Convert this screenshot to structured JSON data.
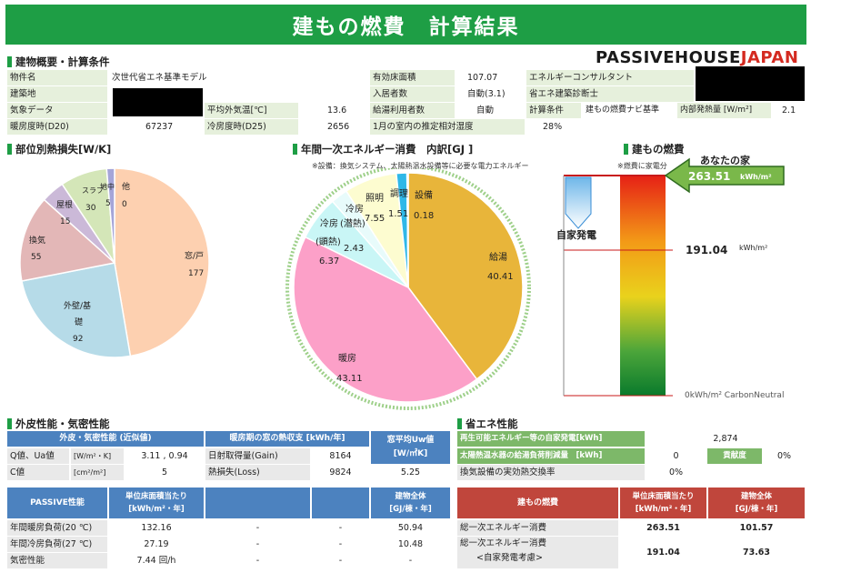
{
  "title": "建もの燃費　計算結果",
  "logo": {
    "left": "PASSIVEHOUSE",
    "right": "JAPAN"
  },
  "overview": {
    "section": "建物概要・計算条件",
    "row1": {
      "l1": "物件名",
      "v1": "次世代省エネ基準モデル",
      "l2": "有効床面積",
      "v2": "107.07",
      "l3": "エネルギーコンサルタント"
    },
    "row2": {
      "l1": "建築地",
      "l2": "入居者数",
      "v2": "自動(3.1)",
      "l3": "省エネ建築診断士"
    },
    "row3": {
      "l1": "気象データ",
      "l2": "平均外気温[℃]",
      "v2": "13.6",
      "l3": "給湯利用者数",
      "v3": "自動",
      "l4": "計算条件",
      "v4": "建もの燃費ナビ基準",
      "l5": "内部発熱量 [W/m²]",
      "v5": "2.1"
    },
    "row4": {
      "l1": "暖房度時(D20)",
      "v1": "67237",
      "l2": "冷房度時(D25)",
      "v2": "2656",
      "l3": "1月の室内の推定相対湿度",
      "v3": "28%"
    }
  },
  "heatloss": {
    "section": "部位別熱損失[W/K]",
    "slices": [
      {
        "label": "窓/戸",
        "value": "177",
        "color": "#fdd0b0"
      },
      {
        "label": "外壁/基礎",
        "value": "92",
        "color": "#b6dbe8"
      },
      {
        "label": "換気",
        "value": "55",
        "color": "#e3b7b7"
      },
      {
        "label": "屋根",
        "value": "15",
        "color": "#cbb9d8"
      },
      {
        "label": "スラブ",
        "value": "30",
        "color": "#d4e6b8"
      },
      {
        "label": "地中",
        "value": "5",
        "color": "#a5a5d8"
      },
      {
        "label": "他",
        "value": "0",
        "color": "#cccccc"
      }
    ]
  },
  "energy": {
    "section": "年間一次エネルギー消費　内訳[GJ ]",
    "note": "※設備：換気システム、太陽熱温水設備等に必要な電力エネルギー",
    "slices": [
      {
        "label": "給湯",
        "value": "40.41",
        "color": "#e8b53a"
      },
      {
        "label": "暖房",
        "value": "43.11",
        "color": "#fca0c8"
      },
      {
        "label": "冷房(顕熱)",
        "value": "6.37",
        "color": "#c9f6f6"
      },
      {
        "label": "冷房(潜熱)",
        "value": "2.43",
        "color": "#e8fbfb"
      },
      {
        "label": "照明",
        "value": "7.55",
        "color": "#fdfcd0"
      },
      {
        "label": "調理",
        "value": "1.51",
        "color": "#2fb8e8"
      },
      {
        "label": "設備",
        "value": "0.18",
        "color": "#2e6ebf"
      }
    ]
  },
  "nenpi": {
    "section": "建もの燃費",
    "note": "※燃費に家電分",
    "your_house": "あなたの家",
    "value": "263.51",
    "unit": "kWh/m²",
    "jika": "自家発電",
    "value2": "191.04",
    "unit2": "kWh/m²",
    "bottom": "0kWh/m² CarbonNeutral"
  },
  "envelope": {
    "section": "外皮性能・気密性能",
    "h1": "外皮・気密性能 (近似値)",
    "h2": "暖房期の窓の熱収支 [kWh/年]",
    "h3": "窓平均Uw値",
    "h3b": "[W/㎡K]",
    "r1l": "Q値、Ua値",
    "r1u": "[W/m²・K]",
    "r1v": "3.11 , 0.94",
    "r1m": "日射取得量(Gain)",
    "r1mv": "8164",
    "r2l": "C値",
    "r2u": "[cm²/m²]",
    "r2v": "5",
    "r2m": "熱損失(Loss)",
    "r2mv": "9824",
    "uw": "5.25"
  },
  "passive": {
    "h1": "PASSIVE性能",
    "h2": "単位床面積当たり",
    "h2b": "[kWh/m²・年]",
    "h3": "建物全体",
    "h3b": "[GJ/棟・年]",
    "rows": [
      {
        "label": "年間暖房負荷(20 ℃)",
        "unit": "132.16",
        "a": "-",
        "b": "-",
        "total": "50.94"
      },
      {
        "label": "年間冷房負荷(27 ℃)",
        "unit": "27.19",
        "a": "-",
        "b": "-",
        "total": "10.48"
      },
      {
        "label": "気密性能",
        "unit": "7.44 回/h",
        "a": "-",
        "b": "-",
        "total": "-"
      }
    ]
  },
  "shoene": {
    "section": "省エネ性能",
    "r1": "再生可能エネルギー等の自家発電[kWh]",
    "r1v": "2,874",
    "r2": "太陽熱温水器の給湯負荷削減量　[kWh]",
    "r2v": "0",
    "r2k": "貢献度",
    "r2kv": "0%",
    "r3": "換気設備の実効熱交換率",
    "r3v": "0%"
  },
  "nenpi_table": {
    "h1": "建もの燃費",
    "h2": "単位床面積当たり",
    "h2b": "[kWh/m²・年]",
    "h3": "建物全体",
    "h3b": "[GJ/棟・年]",
    "r1": "総一次エネルギー消費",
    "r1a": "263.51",
    "r1b": "101.57",
    "r2": "総一次エネルギー消費",
    "r2sub": "<自家発電考慮>",
    "r2a": "191.04",
    "r2b": "73.63"
  }
}
